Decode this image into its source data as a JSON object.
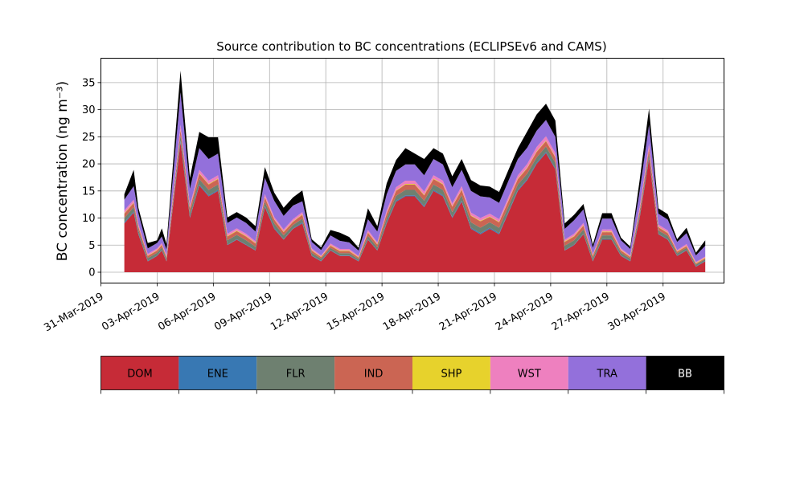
{
  "chart_data": {
    "type": "area",
    "stacked": true,
    "title": "Source contribution to BC concentrations (ECLIPSEv6 and CAMS)",
    "ylabel": "BC concentration (ng m⁻³)",
    "xlabel": "",
    "xlim": [
      "2019-03-31T00:00",
      "2019-05-03T06:00"
    ],
    "ylim": [
      -2,
      39.5
    ],
    "yticks": [
      0,
      5,
      10,
      15,
      20,
      25,
      30,
      35
    ],
    "xticks": [
      "2019-03-31",
      "2019-04-03",
      "2019-04-06",
      "2019-04-09",
      "2019-04-12",
      "2019-04-15",
      "2019-04-18",
      "2019-04-21",
      "2019-04-24",
      "2019-04-27",
      "2019-04-30"
    ],
    "xtick_labels": [
      "31-Mar-2019",
      "03-Apr-2019",
      "06-Apr-2019",
      "09-Apr-2019",
      "12-Apr-2019",
      "15-Apr-2019",
      "18-Apr-2019",
      "21-Apr-2019",
      "24-Apr-2019",
      "27-Apr-2019",
      "30-Apr-2019"
    ],
    "grid": true,
    "x": [
      "2019-04-01T06:00",
      "2019-04-01T18:00",
      "2019-04-02T00:00",
      "2019-04-02T12:00",
      "2019-04-03T00:00",
      "2019-04-03T06:00",
      "2019-04-03T12:00",
      "2019-04-04T06:00",
      "2019-04-04T18:00",
      "2019-04-05T06:00",
      "2019-04-05T18:00",
      "2019-04-06T06:00",
      "2019-04-06T18:00",
      "2019-04-07T06:00",
      "2019-04-07T18:00",
      "2019-04-08T06:00",
      "2019-04-08T18:00",
      "2019-04-09T06:00",
      "2019-04-09T18:00",
      "2019-04-10T06:00",
      "2019-04-10T18:00",
      "2019-04-11T06:00",
      "2019-04-11T18:00",
      "2019-04-12T06:00",
      "2019-04-12T18:00",
      "2019-04-13T06:00",
      "2019-04-13T18:00",
      "2019-04-14T06:00",
      "2019-04-14T18:00",
      "2019-04-15T06:00",
      "2019-04-15T18:00",
      "2019-04-16T06:00",
      "2019-04-16T18:00",
      "2019-04-17T06:00",
      "2019-04-17T18:00",
      "2019-04-18T06:00",
      "2019-04-18T18:00",
      "2019-04-19T06:00",
      "2019-04-19T18:00",
      "2019-04-20T06:00",
      "2019-04-20T18:00",
      "2019-04-21T06:00",
      "2019-04-21T18:00",
      "2019-04-22T06:00",
      "2019-04-22T18:00",
      "2019-04-23T06:00",
      "2019-04-23T18:00",
      "2019-04-24T06:00",
      "2019-04-24T18:00",
      "2019-04-25T06:00",
      "2019-04-25T18:00",
      "2019-04-26T06:00",
      "2019-04-26T18:00",
      "2019-04-27T06:00",
      "2019-04-27T18:00",
      "2019-04-28T06:00",
      "2019-04-28T18:00",
      "2019-04-29T06:00",
      "2019-04-29T18:00",
      "2019-04-30T06:00",
      "2019-04-30T18:00",
      "2019-05-01T06:00",
      "2019-05-01T18:00",
      "2019-05-02T06:00"
    ],
    "series": [
      {
        "name": "DOM",
        "color": "#c62b37",
        "values": [
          9,
          11,
          7,
          2,
          3,
          4,
          2,
          24,
          10,
          16,
          14,
          15,
          5,
          6,
          5,
          4,
          12,
          8,
          6,
          8,
          9,
          3,
          2,
          4,
          3,
          3,
          2,
          6,
          4,
          9,
          13,
          14,
          14,
          12,
          15,
          14,
          10,
          13,
          8,
          7,
          8,
          7,
          11,
          15,
          17,
          20,
          22,
          19,
          4,
          5,
          7,
          2,
          6,
          6,
          3,
          2,
          10,
          21,
          7,
          6,
          3,
          4,
          1,
          2
        ]
      },
      {
        "name": "ENE",
        "color": "#3878b3",
        "values": [
          0.2,
          0.2,
          0.2,
          0.1,
          0.1,
          0.1,
          0.1,
          0.3,
          0.2,
          0.2,
          0.2,
          0.2,
          0.1,
          0.1,
          0.1,
          0.1,
          0.2,
          0.2,
          0.1,
          0.1,
          0.2,
          0.1,
          0.1,
          0.1,
          0.1,
          0.1,
          0.1,
          0.1,
          0.1,
          0.2,
          0.2,
          0.2,
          0.2,
          0.2,
          0.2,
          0.2,
          0.2,
          0.2,
          0.2,
          0.2,
          0.2,
          0.2,
          0.2,
          0.2,
          0.2,
          0.2,
          0.2,
          0.2,
          0.1,
          0.1,
          0.1,
          0.1,
          0.1,
          0.1,
          0.1,
          0.1,
          0.2,
          0.2,
          0.1,
          0.1,
          0.1,
          0.1,
          0.1,
          0.1
        ]
      },
      {
        "name": "FLR",
        "color": "#6e8070",
        "values": [
          0.8,
          0.8,
          0.6,
          0.5,
          0.5,
          0.5,
          0.4,
          1.0,
          0.8,
          1.0,
          1.0,
          1.0,
          0.8,
          0.8,
          0.8,
          0.6,
          0.8,
          0.8,
          0.7,
          0.6,
          0.7,
          0.5,
          0.4,
          0.4,
          0.4,
          0.4,
          0.3,
          0.6,
          0.5,
          0.8,
          0.9,
          1.0,
          1.0,
          1.0,
          1.0,
          1.0,
          0.9,
          1.0,
          1.0,
          1.0,
          1.0,
          1.0,
          1.0,
          1.0,
          1.0,
          1.0,
          1.0,
          1.0,
          0.8,
          0.8,
          0.8,
          0.5,
          0.7,
          0.7,
          0.5,
          0.4,
          0.6,
          0.8,
          0.6,
          0.6,
          0.4,
          0.4,
          0.3,
          0.3
        ]
      },
      {
        "name": "IND",
        "color": "#cb6553",
        "values": [
          0.8,
          0.8,
          0.6,
          0.4,
          0.4,
          0.4,
          0.3,
          1.0,
          0.8,
          1.0,
          1.0,
          1.0,
          0.7,
          0.7,
          0.7,
          0.6,
          0.8,
          0.7,
          0.6,
          0.6,
          0.7,
          0.4,
          0.3,
          0.4,
          0.4,
          0.4,
          0.3,
          0.6,
          0.5,
          0.8,
          0.9,
          1.0,
          1.0,
          1.0,
          1.0,
          1.0,
          1.0,
          1.0,
          1.2,
          1.2,
          1.0,
          1.0,
          1.0,
          1.0,
          1.0,
          1.0,
          1.0,
          1.0,
          0.7,
          0.7,
          0.7,
          0.4,
          0.6,
          0.6,
          0.4,
          0.3,
          0.6,
          0.8,
          0.6,
          0.5,
          0.3,
          0.3,
          0.2,
          0.2
        ]
      },
      {
        "name": "SHP",
        "color": "#e7d22c",
        "values": [
          0.1,
          0.1,
          0.1,
          0.1,
          0.1,
          0.1,
          0.1,
          0.1,
          0.1,
          0.1,
          0.1,
          0.1,
          0.1,
          0.1,
          0.1,
          0.1,
          0.1,
          0.1,
          0.1,
          0.1,
          0.1,
          0.1,
          0.1,
          0.1,
          0.1,
          0.1,
          0.1,
          0.1,
          0.1,
          0.1,
          0.1,
          0.1,
          0.1,
          0.1,
          0.1,
          0.1,
          0.1,
          0.1,
          0.1,
          0.1,
          0.1,
          0.1,
          0.1,
          0.1,
          0.1,
          0.1,
          0.1,
          0.1,
          0.1,
          0.1,
          0.1,
          0.1,
          0.1,
          0.1,
          0.1,
          0.1,
          0.1,
          0.1,
          0.1,
          0.1,
          0.1,
          0.1,
          0.1,
          0.1
        ]
      },
      {
        "name": "WST",
        "color": "#ee80bf",
        "values": [
          0.5,
          0.5,
          0.4,
          0.3,
          0.3,
          0.3,
          0.3,
          0.8,
          0.5,
          0.6,
          0.6,
          0.6,
          0.4,
          0.4,
          0.4,
          0.3,
          0.5,
          0.4,
          0.4,
          0.4,
          0.4,
          0.3,
          0.2,
          0.3,
          0.3,
          0.3,
          0.2,
          0.4,
          0.3,
          0.5,
          0.6,
          0.6,
          0.6,
          0.6,
          0.6,
          0.6,
          0.5,
          0.6,
          0.5,
          0.5,
          0.5,
          0.5,
          0.6,
          0.6,
          0.7,
          0.8,
          0.8,
          0.7,
          0.3,
          0.4,
          0.4,
          0.2,
          0.4,
          0.4,
          0.3,
          0.2,
          0.5,
          0.8,
          0.4,
          0.4,
          0.2,
          0.3,
          0.2,
          0.2
        ]
      },
      {
        "name": "TRA",
        "color": "#9370db",
        "values": [
          2,
          2.5,
          2,
          1,
          1,
          1.2,
          1,
          6,
          3,
          4,
          4,
          4,
          2,
          2,
          2,
          1.8,
          3,
          3,
          2.5,
          2.5,
          2,
          1.2,
          1,
          1.5,
          1.5,
          1.2,
          1,
          2,
          2,
          3,
          3,
          3,
          3,
          3,
          3,
          3,
          3,
          3,
          4,
          4,
          3,
          3,
          3,
          3,
          3,
          3,
          3,
          3,
          2,
          2.5,
          2.5,
          1.2,
          2,
          2,
          1.5,
          1.2,
          3,
          3.5,
          2,
          2,
          1.5,
          2,
          1.2,
          2
        ]
      },
      {
        "name": "BB",
        "color": "#000000",
        "values": [
          1,
          3,
          1,
          1,
          0.5,
          1.5,
          1,
          4,
          2,
          3,
          4,
          3,
          1,
          1,
          1,
          1,
          2,
          1.5,
          1.5,
          1.5,
          2,
          0.5,
          0.5,
          1,
          1.5,
          1,
          0.5,
          2,
          1,
          2,
          2,
          3,
          2,
          3,
          2,
          2,
          2,
          2,
          2,
          2,
          2,
          2,
          2,
          2,
          3,
          3,
          3,
          3,
          1,
          1,
          1,
          0.6,
          1,
          1,
          0.5,
          0.4,
          2,
          3,
          1,
          1,
          0.5,
          1,
          0.5,
          1
        ]
      }
    ],
    "legend_position": "bottom"
  }
}
